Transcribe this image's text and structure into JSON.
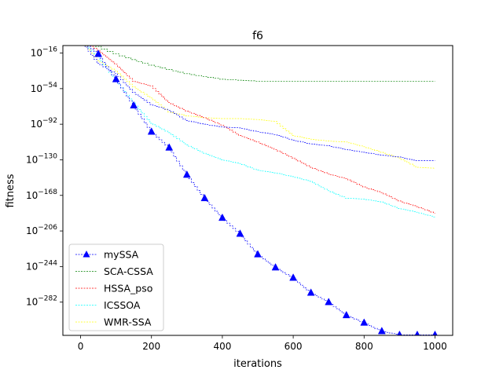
{
  "chart_data": {
    "type": "line",
    "title": "f6",
    "xlabel": "iterations",
    "ylabel": "fitness",
    "xlim": [
      -50,
      1050
    ],
    "ylim_exponent": [
      -300,
      0
    ],
    "y_scale": "log",
    "grid": false,
    "legend_position": "lower-left",
    "x_ticks": [
      0,
      200,
      400,
      600,
      800,
      1000
    ],
    "x_tick_labels": [
      "0",
      "200",
      "400",
      "600",
      "800",
      "1000"
    ],
    "y_ticks_exponent": [
      -16,
      -54,
      -92,
      -130,
      -168,
      -206,
      -244,
      -282
    ],
    "y_tick_labels": [
      {
        "base": "10",
        "exp": "−16"
      },
      {
        "base": "10",
        "exp": "−54"
      },
      {
        "base": "10",
        "exp": "−92"
      },
      {
        "base": "10",
        "exp": "−130"
      },
      {
        "base": "10",
        "exp": "−168"
      },
      {
        "base": "10",
        "exp": "−206"
      },
      {
        "base": "10",
        "exp": "−244"
      },
      {
        "base": "10",
        "exp": "−282"
      }
    ],
    "series": [
      {
        "name": "mySSA",
        "color": "#0000ff",
        "marker": "triangle",
        "x": [
          0,
          50,
          100,
          150,
          200,
          250,
          300,
          350,
          400,
          450,
          500,
          550,
          600,
          650,
          700,
          750,
          800,
          850,
          900,
          950,
          1000
        ],
        "y_exponent": [
          -1,
          -17,
          -44,
          -72,
          -100,
          -117,
          -146,
          -171,
          -192,
          -209,
          -231,
          -245,
          -256,
          -272,
          -282,
          -296,
          -304,
          -313,
          -317,
          -317,
          -317
        ]
      },
      {
        "name": "SCA-CSSA",
        "color": "#008000",
        "marker": "none",
        "x": [
          0,
          100,
          200,
          300,
          400,
          500,
          600,
          700,
          800,
          900,
          1000
        ],
        "y_exponent": [
          -1,
          -17,
          -29,
          -38,
          -44,
          -46,
          -46,
          -46,
          -46,
          -46,
          -46
        ]
      },
      {
        "name": "HSSA_pso",
        "color": "#ff0000",
        "marker": "none",
        "x": [
          0,
          50,
          100,
          150,
          200,
          250,
          300,
          350,
          400,
          450,
          500,
          550,
          600,
          650,
          700,
          750,
          800,
          850,
          900,
          950,
          1000
        ],
        "y_exponent": [
          -1,
          -13,
          -28,
          -46,
          -51,
          -69,
          -78,
          -85,
          -93,
          -104,
          -111,
          -119,
          -128,
          -138,
          -145,
          -150,
          -159,
          -165,
          -174,
          -180,
          -187
        ]
      },
      {
        "name": "ICSSOA",
        "color": "#00ffff",
        "marker": "none",
        "x": [
          0,
          50,
          100,
          150,
          200,
          250,
          300,
          350,
          400,
          450,
          500,
          550,
          600,
          650,
          700,
          750,
          800,
          850,
          900,
          950,
          1000
        ],
        "y_exponent": [
          -1,
          -20,
          -45,
          -69,
          -91,
          -101,
          -114,
          -123,
          -130,
          -134,
          -141,
          -144,
          -148,
          -153,
          -163,
          -171,
          -172,
          -175,
          -182,
          -186,
          -191
        ]
      },
      {
        "name": "WMR-SSA",
        "color": "#ffff00",
        "marker": "none",
        "x": [
          0,
          50,
          100,
          150,
          200,
          250,
          300,
          350,
          400,
          450,
          500,
          550,
          600,
          650,
          700,
          750,
          800,
          850,
          900,
          950,
          1000
        ],
        "y_exponent": [
          -1,
          -24,
          -35,
          -52,
          -64,
          -79,
          -83,
          -85,
          -86,
          -86,
          -87,
          -89,
          -104,
          -108,
          -110,
          -111,
          -116,
          -122,
          -128,
          -138,
          -139
        ]
      },
      {
        "name": "",
        "color": "#0000ff",
        "marker": "none",
        "x": [
          0,
          50,
          100,
          150,
          200,
          250,
          300,
          350,
          400,
          450,
          500,
          550,
          600,
          650,
          700,
          750,
          800,
          850,
          900,
          950,
          1000
        ],
        "y_exponent": [
          -1,
          -27,
          -38,
          -58,
          -71,
          -77,
          -88,
          -92,
          -95,
          -96,
          -100,
          -103,
          -109,
          -113,
          -115,
          -119,
          -122,
          -125,
          -127,
          -131,
          -131
        ]
      }
    ],
    "legend": [
      "mySSA",
      "SCA-CSSA",
      "HSSA_pso",
      "ICSSOA",
      "WMR-SSA"
    ]
  }
}
